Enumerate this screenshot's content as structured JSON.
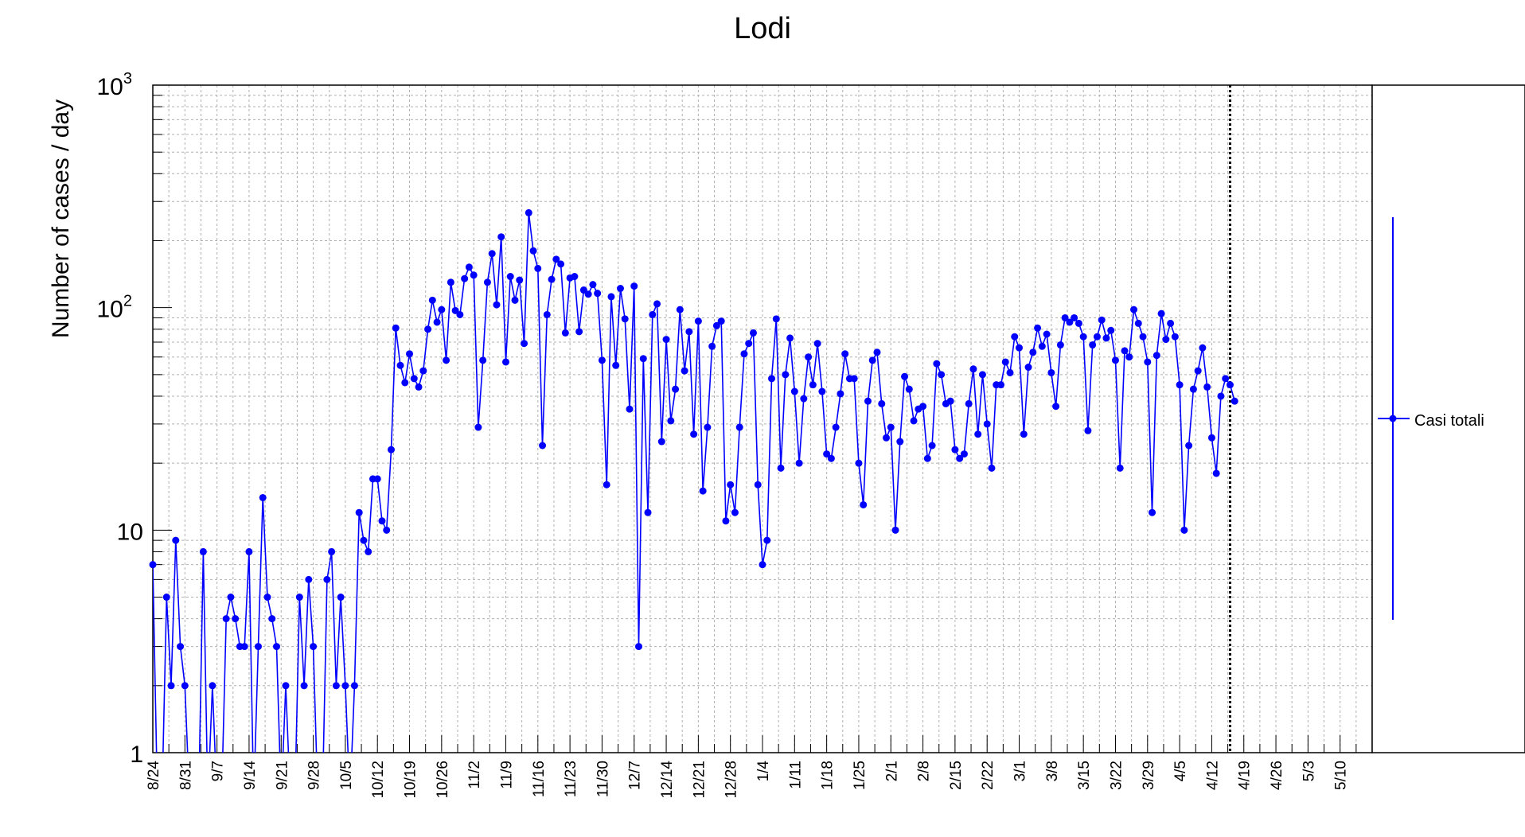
{
  "chart_data": {
    "type": "line",
    "title": "Lodi",
    "ylabel": "Number of cases / day",
    "xlabel": "",
    "yscale": "log",
    "ylim": [
      1,
      1000
    ],
    "y_ticks": [
      {
        "value": 1,
        "label": "1"
      },
      {
        "value": 10,
        "label": "10"
      },
      {
        "value": 100,
        "label": "10",
        "exp": "2"
      },
      {
        "value": 1000,
        "label": "10",
        "exp": "3"
      }
    ],
    "x_start": "2020-08-24",
    "x_end": "2021-05-17",
    "x_tick_labels": [
      "8/24",
      "8/31",
      "9/7",
      "9/14",
      "9/21",
      "9/28",
      "10/5",
      "10/12",
      "10/19",
      "10/26",
      "11/2",
      "11/9",
      "11/16",
      "11/23",
      "11/30",
      "12/7",
      "12/14",
      "12/21",
      "12/28",
      "1/4",
      "1/11",
      "1/18",
      "1/25",
      "2/1",
      "2/8",
      "2/15",
      "2/22",
      "3/1",
      "3/8",
      "3/15",
      "3/22",
      "3/29",
      "4/5",
      "4/12",
      "4/19",
      "4/26",
      "5/3",
      "5/10"
    ],
    "grid": true,
    "legend": "right",
    "vline_date": "2021-04-16",
    "series": [
      {
        "name": "Casi totali",
        "color": "#0000ff",
        "values": [
          7,
          0,
          0,
          5,
          2,
          9,
          3,
          2,
          0,
          0,
          0,
          8,
          0,
          2,
          0,
          0,
          4,
          5,
          4,
          3,
          3,
          8,
          0,
          3,
          14,
          5,
          4,
          3,
          0,
          2,
          0,
          0,
          5,
          2,
          6,
          3,
          0,
          0,
          6,
          8,
          2,
          5,
          2,
          0,
          2,
          12,
          9,
          8,
          17,
          17,
          11,
          10,
          23,
          81,
          55,
          46,
          62,
          48,
          44,
          52,
          80,
          108,
          86,
          98,
          58,
          130,
          97,
          93,
          135,
          152,
          140,
          29,
          58,
          130,
          175,
          103,
          208,
          57,
          138,
          108,
          133,
          69,
          267,
          180,
          150,
          24,
          93,
          134,
          165,
          157,
          77,
          136,
          138,
          78,
          120,
          115,
          127,
          116,
          58,
          16,
          112,
          55,
          122,
          89,
          35,
          125,
          3,
          59,
          12,
          93,
          104,
          25,
          72,
          31,
          43,
          98,
          52,
          78,
          27,
          87,
          15,
          29,
          67,
          83,
          87,
          11,
          16,
          12,
          29,
          62,
          69,
          77,
          16,
          7,
          9,
          48,
          89,
          19,
          50,
          73,
          42,
          20,
          39,
          60,
          45,
          69,
          42,
          22,
          21,
          29,
          41,
          62,
          48,
          48,
          20,
          13,
          38,
          58,
          63,
          37,
          26,
          29,
          10,
          25,
          49,
          43,
          31,
          35,
          36,
          21,
          24,
          56,
          50,
          37,
          38,
          23,
          21,
          22,
          37,
          53,
          27,
          50,
          30,
          19,
          45,
          45,
          57,
          51,
          74,
          66,
          27,
          54,
          63,
          81,
          67,
          76,
          51,
          36,
          68,
          90,
          86,
          90,
          85,
          74,
          28,
          68,
          74,
          88,
          73,
          79,
          58,
          19,
          64,
          60,
          98,
          85,
          74,
          57,
          12,
          61,
          94,
          72,
          85,
          74,
          45,
          10,
          24,
          43,
          52,
          66,
          44,
          26,
          18,
          40,
          48,
          45,
          38
        ]
      }
    ]
  }
}
